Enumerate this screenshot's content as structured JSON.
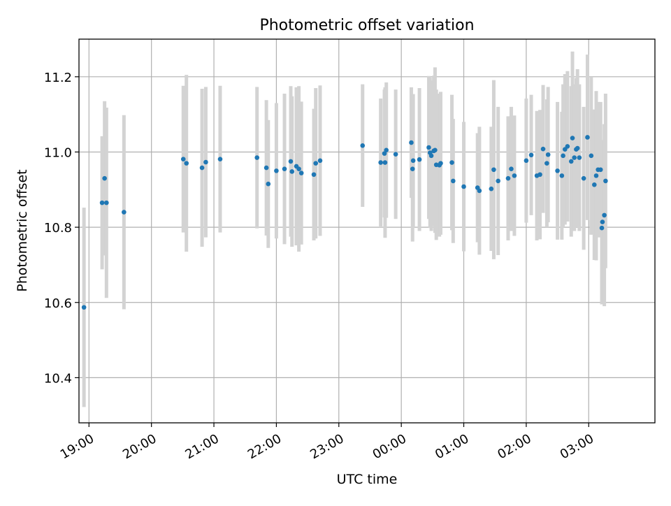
{
  "chart_data": {
    "type": "scatter",
    "title": "Photometric offset variation",
    "xlabel": "UTC time",
    "ylabel": "Photometric offset",
    "x_axis_kind": "time",
    "x_unit": "hours since 19:00 UTC",
    "xlim": [
      -0.16,
      9.06
    ],
    "ylim": [
      10.28,
      11.3
    ],
    "x_ticks": [
      {
        "value": 0,
        "label": "19:00"
      },
      {
        "value": 1,
        "label": "20:00"
      },
      {
        "value": 2,
        "label": "21:00"
      },
      {
        "value": 3,
        "label": "22:00"
      },
      {
        "value": 4,
        "label": "23:00"
      },
      {
        "value": 5,
        "label": "00:00"
      },
      {
        "value": 6,
        "label": "01:00"
      },
      {
        "value": 7,
        "label": "02:00"
      },
      {
        "value": 8,
        "label": "03:00"
      }
    ],
    "y_ticks": [
      {
        "value": 10.4,
        "label": "10.4"
      },
      {
        "value": 10.6,
        "label": "10.6"
      },
      {
        "value": 10.8,
        "label": "10.8"
      },
      {
        "value": 11.0,
        "label": "11.0"
      },
      {
        "value": 11.2,
        "label": "11.2"
      }
    ],
    "grid": true,
    "marker_color": "#1f77b4",
    "errorbar_color": "#d3d3d3",
    "series": [
      {
        "x": [
          -0.08,
          0.21,
          0.25,
          0.28,
          0.56,
          1.51,
          1.56,
          1.81,
          1.87,
          2.1,
          2.69,
          2.84,
          2.87,
          3.0,
          3.13,
          3.23,
          3.25,
          3.32,
          3.36,
          3.4,
          3.6,
          3.63,
          3.7,
          4.38,
          4.67,
          4.73,
          4.74,
          4.76,
          4.91,
          5.16,
          5.18,
          5.19,
          5.29,
          5.44,
          5.46,
          5.48,
          5.52,
          5.54,
          5.56,
          5.61,
          5.63,
          5.81,
          5.83,
          6.0,
          6.22,
          6.25,
          6.44,
          6.48,
          6.55,
          6.71,
          6.76,
          6.81,
          7.0,
          7.08,
          7.17,
          7.22,
          7.27,
          7.33,
          7.35,
          7.5,
          7.57,
          7.59,
          7.62,
          7.66,
          7.72,
          7.74,
          7.77,
          7.8,
          7.82,
          7.85,
          7.92,
          7.98,
          8.04,
          8.09,
          8.12,
          8.15,
          8.19,
          8.21,
          8.22,
          8.25,
          8.27
        ],
        "y": [
          10.587,
          10.865,
          10.93,
          10.865,
          10.84,
          10.981,
          10.97,
          10.958,
          10.973,
          10.981,
          10.985,
          10.958,
          10.915,
          10.95,
          10.955,
          10.975,
          10.948,
          10.962,
          10.955,
          10.944,
          10.94,
          10.97,
          10.977,
          11.017,
          10.972,
          10.996,
          10.972,
          11.005,
          10.994,
          11.025,
          10.955,
          10.977,
          10.98,
          11.012,
          10.998,
          10.99,
          11.003,
          11.005,
          10.966,
          10.965,
          10.97,
          10.972,
          10.923,
          10.908,
          10.905,
          10.897,
          10.902,
          10.953,
          10.923,
          10.93,
          10.955,
          10.937,
          10.977,
          10.992,
          10.937,
          10.94,
          11.008,
          10.97,
          10.993,
          10.95,
          10.937,
          10.99,
          11.007,
          11.015,
          10.975,
          11.037,
          10.985,
          11.007,
          11.01,
          10.985,
          10.93,
          11.039,
          10.99,
          10.913,
          10.937,
          10.953,
          10.953,
          10.798,
          10.814,
          10.832,
          10.923
        ],
        "yerr": [
          0.265,
          0.177,
          0.205,
          0.253,
          0.258,
          0.195,
          0.235,
          0.21,
          0.2,
          0.195,
          0.188,
          0.18,
          0.17,
          0.18,
          0.2,
          0.2,
          0.2,
          0.21,
          0.22,
          0.19,
          0.175,
          0.2,
          0.2,
          0.163,
          0.17,
          0.17,
          0.2,
          0.18,
          0.172,
          0.147,
          0.193,
          0.177,
          0.19,
          0.19,
          0.2,
          0.2,
          0.2,
          0.22,
          0.2,
          0.19,
          0.19,
          0.18,
          0.165,
          0.172,
          0.145,
          0.17,
          0.165,
          0.238,
          0.197,
          0.165,
          0.165,
          0.16,
          0.165,
          0.16,
          0.172,
          0.172,
          0.17,
          0.17,
          0.18,
          0.183,
          0.17,
          0.19,
          0.2,
          0.2,
          0.2,
          0.23,
          0.195,
          0.19,
          0.21,
          0.195,
          0.19,
          0.22,
          0.21,
          0.2,
          0.225,
          0.18,
          0.18,
          0.203,
          0.218,
          0.242,
          0.232
        ]
      }
    ]
  }
}
